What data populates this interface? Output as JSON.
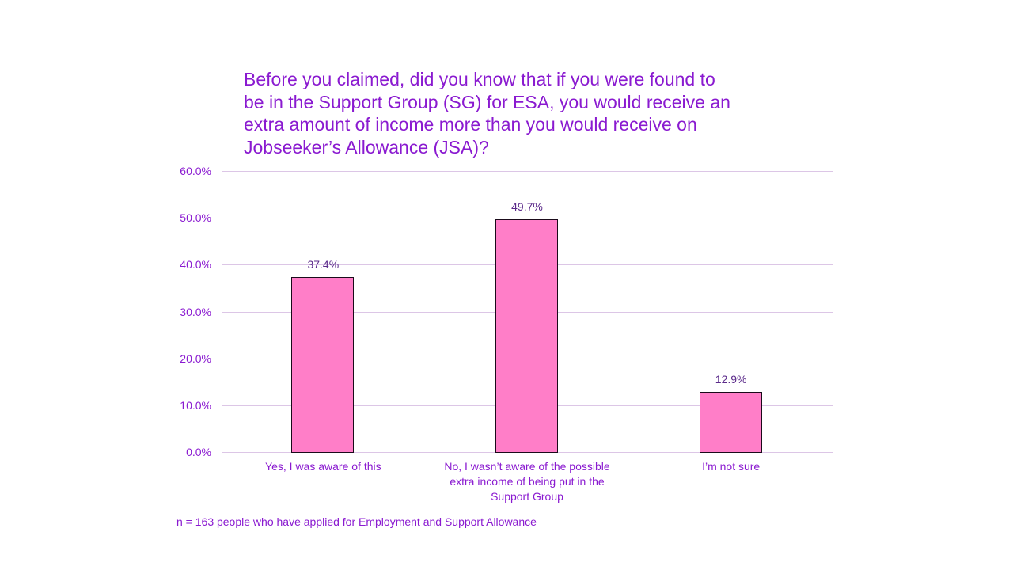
{
  "chart_data": {
    "type": "bar",
    "title": "Before you claimed, did you know that if you were found to be in the Support Group (SG) for ESA, you would receive an extra amount of income more than you would receive on Jobseeker’s Allowance (JSA)?",
    "categories": [
      "Yes, I was aware of this",
      "No, I wasn’t aware of the possible extra income of being put in the Support Group",
      "I’m not sure"
    ],
    "values": [
      37.4,
      49.7,
      12.9
    ],
    "data_labels": [
      "37.4%",
      "49.7%",
      "12.9%"
    ],
    "xlabel": "",
    "ylabel": "",
    "ylim": [
      0,
      60
    ],
    "yticks": [
      "0.0%",
      "10.0%",
      "20.0%",
      "30.0%",
      "40.0%",
      "50.0%",
      "60.0%"
    ],
    "grid": true,
    "legend": "none",
    "bar_color": "#ff7ec8",
    "text_color": "#8a1ad0",
    "footnote": "n = 163 people who have applied for Employment and Support Allowance"
  },
  "title_lines": [
    "Before you claimed, did you know that if you were found to",
    "be in the Support Group (SG) for ESA, you would receive an",
    "extra amount of income more than you would receive on",
    "Jobseeker’s Allowance (JSA)?"
  ],
  "xlabels": [
    [
      "Yes, I was aware of this"
    ],
    [
      "No, I wasn’t aware of the possible",
      "extra income of being put in the",
      "Support Group"
    ],
    [
      "I’m not sure"
    ]
  ]
}
